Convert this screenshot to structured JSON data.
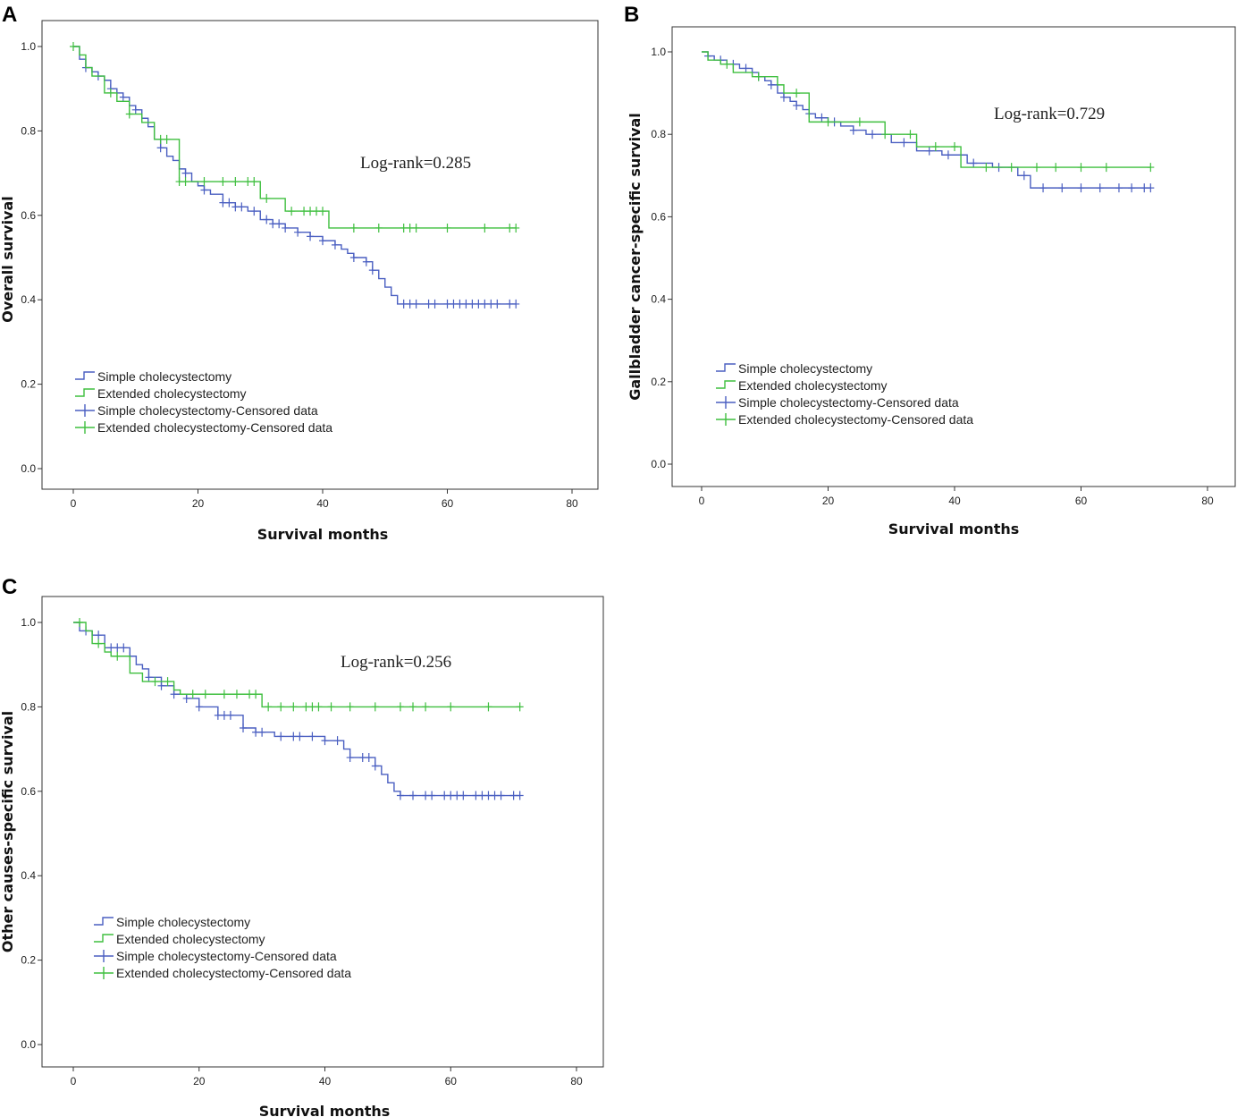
{
  "chart_data": [
    {
      "type": "line",
      "panel_label": "A",
      "title": "",
      "xlabel": "Survival months",
      "ylabel": "Overall survival",
      "xlim": [
        0,
        80
      ],
      "ylim": [
        0,
        1
      ],
      "x_ticks": [
        "0",
        "20",
        "40",
        "60",
        "80"
      ],
      "y_ticks": [
        "0.0",
        "0.2",
        "0.4",
        "0.6",
        "0.8",
        "1.0"
      ],
      "annotation": "Log-rank=0.285",
      "legend_position": "bottom-left",
      "legend": [
        "Simple cholecystectomy",
        "Extended cholecystectomy",
        "Simple cholecystectomy-Censored data",
        "Extended cholecystectomy-Censored data"
      ],
      "series": [
        {
          "name": "Simple cholecystectomy",
          "color": "#4a5fc1",
          "x": [
            0,
            1,
            2,
            3,
            4,
            5,
            6,
            7,
            8,
            9,
            10,
            11,
            12,
            13,
            14,
            15,
            16,
            17,
            18,
            19,
            20,
            21,
            22,
            24,
            26,
            28,
            30,
            32,
            34,
            36,
            38,
            40,
            42,
            43,
            44,
            45,
            47,
            48,
            49,
            50,
            51,
            52,
            71
          ],
          "y": [
            1.0,
            0.97,
            0.95,
            0.94,
            0.93,
            0.92,
            0.9,
            0.89,
            0.88,
            0.86,
            0.85,
            0.83,
            0.81,
            0.78,
            0.76,
            0.74,
            0.73,
            0.71,
            0.7,
            0.68,
            0.67,
            0.66,
            0.65,
            0.63,
            0.62,
            0.61,
            0.59,
            0.58,
            0.57,
            0.56,
            0.55,
            0.54,
            0.53,
            0.52,
            0.51,
            0.5,
            0.49,
            0.47,
            0.45,
            0.43,
            0.41,
            0.39,
            0.39
          ],
          "censored_x": [
            2,
            4,
            6,
            8,
            10,
            14,
            18,
            21,
            24,
            25,
            26,
            27,
            29,
            31,
            32,
            33,
            34,
            36,
            38,
            40,
            42,
            45,
            47,
            48,
            53,
            54,
            55,
            57,
            58,
            60,
            61,
            62,
            63,
            64,
            65,
            66,
            67,
            68,
            70,
            71
          ]
        },
        {
          "name": "Extended cholecystectomy",
          "color": "#3fbf3f",
          "x": [
            0,
            1,
            2,
            3,
            5,
            7,
            9,
            11,
            13,
            17,
            24,
            29,
            30,
            34,
            41,
            71
          ],
          "y": [
            1.0,
            0.98,
            0.95,
            0.93,
            0.89,
            0.87,
            0.84,
            0.82,
            0.78,
            0.68,
            0.68,
            0.68,
            0.64,
            0.61,
            0.57,
            0.57
          ],
          "censored_x": [
            0,
            6,
            9,
            14,
            15,
            17,
            18,
            21,
            24,
            26,
            28,
            29,
            31,
            35,
            37,
            38,
            39,
            40,
            45,
            49,
            53,
            54,
            55,
            60,
            66,
            70,
            71
          ]
        }
      ]
    },
    {
      "type": "line",
      "panel_label": "B",
      "title": "",
      "xlabel": "Survival months",
      "ylabel": "Gallbladder cancer-specific survival",
      "xlim": [
        0,
        80
      ],
      "ylim": [
        0,
        1
      ],
      "x_ticks": [
        "0",
        "20",
        "40",
        "60",
        "80"
      ],
      "y_ticks": [
        "0.0",
        "0.2",
        "0.4",
        "0.6",
        "0.8",
        "1.0"
      ],
      "annotation": "Log-rank=0.729",
      "legend_position": "bottom-left",
      "legend": [
        "Simple cholecystectomy",
        "Extended cholecystectomy",
        "Simple cholecystectomy-Censored data",
        "Extended cholecystectomy-Censored data"
      ],
      "series": [
        {
          "name": "Simple cholecystectomy",
          "color": "#4a5fc1",
          "x": [
            0,
            1,
            2,
            4,
            6,
            8,
            9,
            10,
            11,
            12,
            13,
            14,
            15,
            16,
            17,
            18,
            20,
            22,
            24,
            26,
            30,
            34,
            38,
            42,
            46,
            50,
            52,
            71
          ],
          "y": [
            1.0,
            0.99,
            0.98,
            0.97,
            0.96,
            0.95,
            0.94,
            0.93,
            0.92,
            0.9,
            0.89,
            0.88,
            0.87,
            0.86,
            0.85,
            0.84,
            0.83,
            0.82,
            0.81,
            0.8,
            0.78,
            0.76,
            0.75,
            0.73,
            0.72,
            0.7,
            0.67,
            0.67
          ],
          "censored_x": [
            1,
            3,
            5,
            7,
            9,
            11,
            13,
            15,
            17,
            19,
            21,
            24,
            27,
            32,
            36,
            39,
            43,
            47,
            51,
            54,
            57,
            60,
            63,
            66,
            68,
            70,
            71
          ]
        },
        {
          "name": "Extended cholecystectomy",
          "color": "#3fbf3f",
          "x": [
            0,
            1,
            3,
            5,
            8,
            12,
            13,
            17,
            21,
            29,
            34,
            41,
            71
          ],
          "y": [
            1.0,
            0.98,
            0.97,
            0.95,
            0.94,
            0.92,
            0.9,
            0.83,
            0.83,
            0.8,
            0.77,
            0.72,
            0.72
          ],
          "censored_x": [
            4,
            9,
            15,
            20,
            25,
            29,
            33,
            37,
            40,
            45,
            49,
            53,
            56,
            60,
            64,
            71
          ]
        }
      ]
    },
    {
      "type": "line",
      "panel_label": "C",
      "title": "",
      "xlabel": "Survival months",
      "ylabel": "Other causes-specific survival",
      "xlim": [
        0,
        80
      ],
      "ylim": [
        0,
        1
      ],
      "x_ticks": [
        "0",
        "20",
        "40",
        "60",
        "80"
      ],
      "y_ticks": [
        "0.0",
        "0.2",
        "0.4",
        "0.6",
        "0.8",
        "1.0"
      ],
      "annotation": "Log-rank=0.256",
      "legend_position": "bottom-left",
      "legend": [
        "Simple cholecystectomy",
        "Extended cholecystectomy",
        "Simple cholecystectomy-Censored data",
        "Extended cholecystectomy-Censored data"
      ],
      "series": [
        {
          "name": "Simple cholecystectomy",
          "color": "#4a5fc1",
          "x": [
            0,
            1,
            3,
            5,
            9,
            10,
            11,
            12,
            14,
            16,
            18,
            20,
            23,
            27,
            29,
            32,
            34,
            40,
            43,
            44,
            48,
            49,
            50,
            51,
            52,
            71
          ],
          "y": [
            1.0,
            0.98,
            0.97,
            0.94,
            0.92,
            0.9,
            0.89,
            0.87,
            0.85,
            0.83,
            0.82,
            0.8,
            0.78,
            0.75,
            0.74,
            0.73,
            0.73,
            0.72,
            0.7,
            0.68,
            0.66,
            0.64,
            0.62,
            0.6,
            0.59,
            0.59
          ],
          "censored_x": [
            2,
            4,
            6,
            7,
            8,
            9,
            12,
            14,
            16,
            18,
            20,
            23,
            24,
            25,
            27,
            29,
            30,
            33,
            35,
            36,
            38,
            40,
            42,
            44,
            46,
            47,
            48,
            52,
            54,
            56,
            57,
            59,
            60,
            61,
            62,
            64,
            65,
            66,
            67,
            68,
            70,
            71
          ]
        },
        {
          "name": "Extended cholecystectomy",
          "color": "#3fbf3f",
          "x": [
            0,
            2,
            3,
            5,
            6,
            9,
            11,
            16,
            17,
            30,
            71
          ],
          "y": [
            1.0,
            0.98,
            0.95,
            0.93,
            0.92,
            0.88,
            0.86,
            0.84,
            0.83,
            0.8,
            0.8
          ],
          "censored_x": [
            1,
            4,
            7,
            13,
            15,
            19,
            21,
            24,
            26,
            28,
            29,
            31,
            33,
            35,
            37,
            38,
            39,
            41,
            44,
            48,
            52,
            54,
            56,
            60,
            66,
            71
          ]
        }
      ]
    }
  ]
}
